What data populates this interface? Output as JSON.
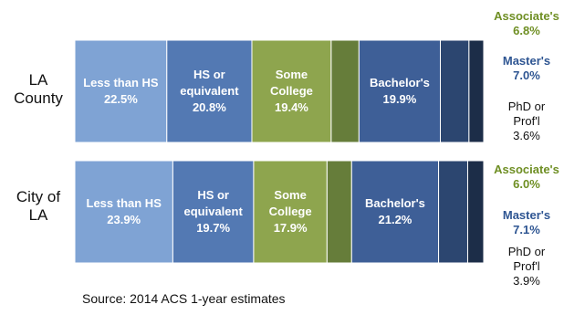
{
  "chart_data": {
    "type": "bar",
    "orientation": "horizontal",
    "stacked": true,
    "percent_unit": "%",
    "categories": [
      "LA\nCounty",
      "City of\nLA"
    ],
    "series": [
      {
        "name": "Less than HS",
        "values": [
          22.5,
          23.9
        ],
        "color": "#7fa3d4",
        "text_color": "#ffffff"
      },
      {
        "name": "HS or\nequivalent",
        "values": [
          20.8,
          19.7
        ],
        "color": "#5379b3",
        "text_color": "#ffffff"
      },
      {
        "name": "Some\nCollege",
        "values": [
          19.4,
          17.9
        ],
        "color": "#8ea54e",
        "text_color": "#ffffff"
      },
      {
        "name": "Associate's",
        "values": [
          6.8,
          6.0
        ],
        "color": "#667d3a",
        "text_color": "#6f8f24"
      },
      {
        "name": "Bachelor's",
        "values": [
          19.9,
          21.2
        ],
        "color": "#3e5f97",
        "text_color": "#ffffff"
      },
      {
        "name": "Master's",
        "values": [
          7.0,
          7.1
        ],
        "color": "#2c4670",
        "text_color": "#2e5592"
      },
      {
        "name": "PhD or\nProf'l",
        "values": [
          3.6,
          3.9
        ],
        "color": "#1c2d48",
        "text_color": "#111111"
      }
    ],
    "legend": "none",
    "grid": false,
    "xlim": [
      0,
      100
    ]
  },
  "source_note": "Source: 2014 ACS 1-year estimates"
}
